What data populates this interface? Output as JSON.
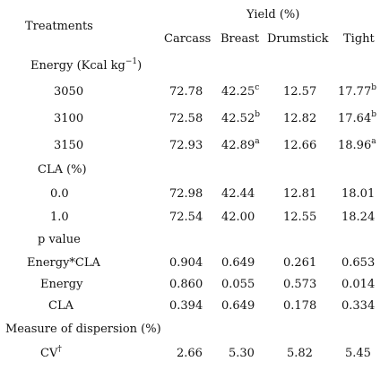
{
  "header": {
    "treatments_label": "Treatments",
    "yield_label": "Yield (%)",
    "columns": [
      "Carcass",
      "Breast",
      "Drumstick",
      "Tight"
    ]
  },
  "sections": {
    "energy": {
      "title_main": "Energy (Kcal kg",
      "title_sup": "−1",
      "title_end": ")",
      "rows": [
        {
          "label": "3050",
          "carcass": "72.78",
          "breast": "42.25",
          "breast_sup": "c",
          "drumstick": "12.57",
          "tight": "17.77",
          "tight_sup": "b"
        },
        {
          "label": "3100",
          "carcass": "72.58",
          "breast": "42.52",
          "breast_sup": "b",
          "drumstick": "12.82",
          "tight": "17.64",
          "tight_sup": "b"
        },
        {
          "label": "3150",
          "carcass": "72.93",
          "breast": "42.89",
          "breast_sup": "a",
          "drumstick": "12.66",
          "tight": "18.96",
          "tight_sup": "a"
        }
      ]
    },
    "cla": {
      "title": "CLA (%)",
      "rows": [
        {
          "label": "0.0",
          "carcass": "72.98",
          "breast": "42.44",
          "drumstick": "12.81",
          "tight": "18.01"
        },
        {
          "label": "1.0",
          "carcass": "72.54",
          "breast": "42.00",
          "drumstick": "12.55",
          "tight": "18.24"
        }
      ]
    },
    "pvalue": {
      "title": "p value",
      "rows": [
        {
          "label": "Energy*CLA",
          "carcass": "0.904",
          "breast": "0.649",
          "drumstick": "0.261",
          "tight": "0.653"
        },
        {
          "label": "Energy",
          "carcass": "0.860",
          "breast": "0.055",
          "drumstick": "0.573",
          "tight": "0.014"
        },
        {
          "label": "CLA",
          "carcass": "0.394",
          "breast": "0.649",
          "drumstick": "0.178",
          "tight": "0.334"
        }
      ]
    },
    "dispersion": {
      "title": "Measure of dispersion (%)",
      "rows": [
        {
          "label": "CV",
          "label_sup": "†",
          "carcass": "2.66",
          "breast": "5.30",
          "drumstick": "5.82",
          "tight": "5.45"
        }
      ]
    }
  }
}
